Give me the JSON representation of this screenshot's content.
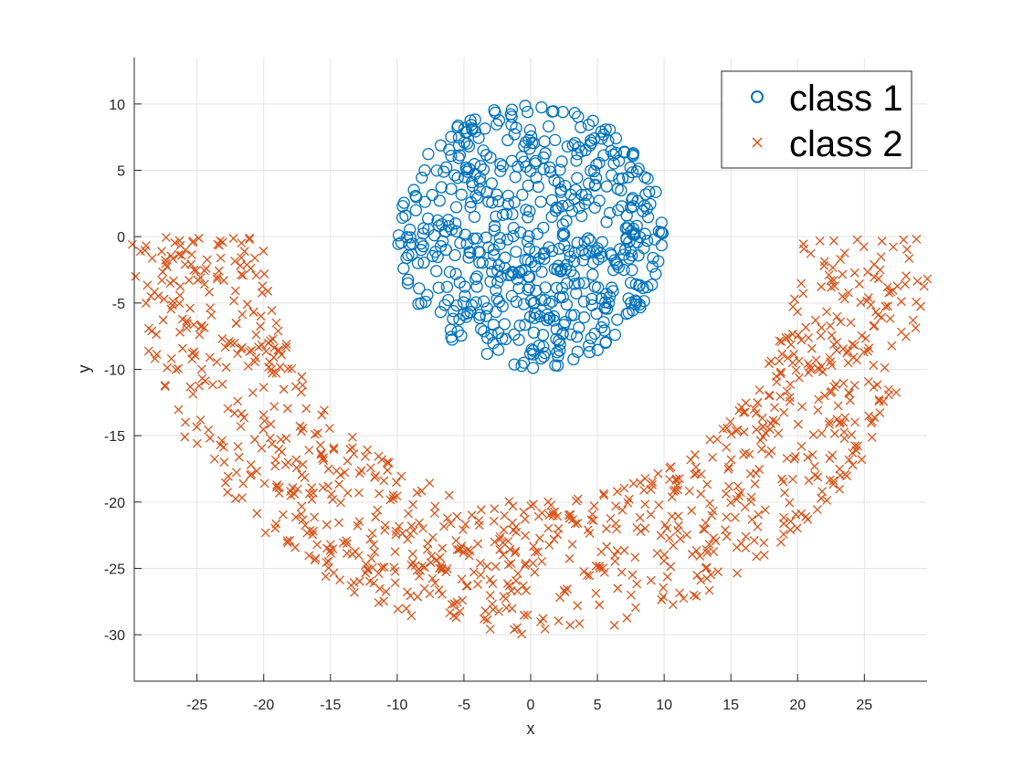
{
  "chart_data": {
    "type": "scatter",
    "title": "",
    "xlabel": "x",
    "ylabel": "y",
    "xlim": [
      -29.7,
      29.7
    ],
    "ylim": [
      -33.5,
      13.5
    ],
    "xticks": [
      "-25",
      "-20",
      "-15",
      "-10",
      "-5",
      "0",
      "5",
      "10",
      "15",
      "20",
      "25"
    ],
    "yticks": [
      "10",
      "5",
      "0",
      "-5",
      "-10",
      "-15",
      "-20",
      "-25",
      "-30"
    ],
    "grid": true,
    "legend_position": "top-right",
    "colors": {
      "class1": "#0072BD",
      "class2": "#D95319"
    },
    "series": [
      {
        "name": "class 1",
        "marker": "circle",
        "distribution": "filled disk",
        "center": [
          0,
          0
        ],
        "radius": 10,
        "point_count": 600
      },
      {
        "name": "class 2",
        "marker": "x",
        "distribution": "half ring below the disk",
        "center": [
          0,
          0
        ],
        "inner_radius": 20,
        "outer_radius": 30,
        "x_range": [
          -30,
          30
        ],
        "y_range": [
          -30,
          0
        ],
        "point_count": 1000
      }
    ]
  }
}
